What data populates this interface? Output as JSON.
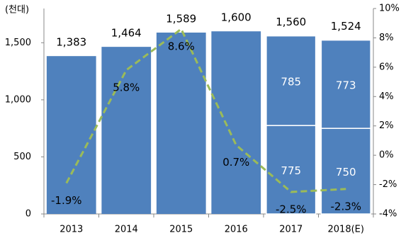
{
  "chart_data": {
    "type": "bar-line",
    "y_unit_label": "(천대)",
    "categories": [
      "2013",
      "2014",
      "2015",
      "2016",
      "2017",
      "2018(E)"
    ],
    "bars": {
      "color": "#4f81bd",
      "totals": [
        1383,
        1464,
        1589,
        1600,
        1560,
        1524
      ],
      "total_labels": [
        "1,383",
        "1,464",
        "1,589",
        "1,600",
        "1,560",
        "1,524"
      ],
      "segments": [
        {
          "values": [
            null,
            null,
            null,
            null,
            775,
            750
          ]
        },
        {
          "values": [
            null,
            null,
            null,
            null,
            785,
            773
          ]
        }
      ]
    },
    "line": {
      "axis": "y2",
      "color": "#9bbb59",
      "dashed": true,
      "values": [
        -1.9,
        5.8,
        8.6,
        0.7,
        -2.5,
        -2.3
      ],
      "value_labels": [
        "-1.9%",
        "5.8%",
        "8.6%",
        "0.7%",
        "-2.5%",
        "-2.3%"
      ]
    },
    "ylim": [
      0,
      1800
    ],
    "yticks": [
      0,
      500,
      {
        "value": 1000,
        "label": "1,000"
      },
      {
        "value": 1500,
        "label": "1,500"
      }
    ],
    "y2lim": [
      -4,
      10
    ],
    "y2ticks": [
      {
        "value": -4,
        "label": "-4%"
      },
      {
        "value": -2,
        "label": "-2%"
      },
      {
        "value": 0,
        "label": "0%"
      },
      {
        "value": 2,
        "label": "2%"
      },
      {
        "value": 4,
        "label": "4%"
      },
      {
        "value": 6,
        "label": "6%"
      },
      {
        "value": 8,
        "label": "8%"
      },
      {
        "value": 10,
        "label": "10%"
      }
    ]
  }
}
